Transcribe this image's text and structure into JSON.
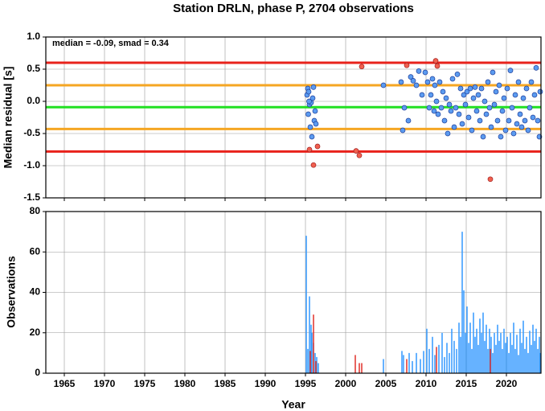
{
  "chart_data": [
    {
      "type": "scatter",
      "title": "Station DRLN, phase P, 2704 observations",
      "ylabel": "Median residual [s]",
      "annotation": "median = -0.09, smad = 0.34",
      "xlim": [
        1962.7,
        2024.3
      ],
      "ylim": [
        -1.5,
        1.0
      ],
      "xticks": [
        1965,
        1970,
        1975,
        1980,
        1985,
        1990,
        1995,
        2000,
        2005,
        2010,
        2015,
        2020
      ],
      "yticks": [
        {
          "value": -1.5,
          "label": "-1.5"
        },
        {
          "value": -1.0,
          "label": "-1.0"
        },
        {
          "value": -0.5,
          "label": "-0.5"
        },
        {
          "value": 0,
          "label": "0.0"
        },
        {
          "value": 0.5,
          "label": "0.5"
        },
        {
          "value": 1.0,
          "label": "1.0"
        }
      ],
      "grid": true,
      "reference_lines": [
        {
          "value": 0.6,
          "color": "#e8221b"
        },
        {
          "value": 0.25,
          "color": "#f5a623"
        },
        {
          "value": -0.09,
          "color": "#22e022"
        },
        {
          "value": -0.43,
          "color": "#f5a623"
        },
        {
          "value": -0.78,
          "color": "#e8221b"
        }
      ],
      "series": [
        {
          "color": "#5b9bf0",
          "x": [
            1995.2,
            1995.3,
            1995.4,
            1995.5,
            1995.6,
            1995.7,
            1995.8,
            1995.9,
            1996.0,
            1996.1,
            1996.2,
            1996.3,
            1995.35,
            1995.45,
            2004.7,
            2006.9,
            2007.1,
            2007.3,
            2007.8,
            2008.1,
            2008.4,
            2008.8,
            2009.1,
            2009.5,
            2009.9,
            2010.2,
            2010.4,
            2010.6,
            2010.8,
            2011.0,
            2011.1,
            2011.3,
            2011.5,
            2011.7,
            2011.9,
            2012.1,
            2012.3,
            2012.5,
            2012.7,
            2012.9,
            2013.1,
            2013.3,
            2013.5,
            2013.7,
            2013.9,
            2014.1,
            2014.3,
            2014.5,
            2014.7,
            2014.9,
            2015.1,
            2015.3,
            2015.5,
            2015.7,
            2015.9,
            2016.1,
            2016.3,
            2016.5,
            2016.7,
            2016.9,
            2017.1,
            2017.3,
            2017.5,
            2017.7,
            2017.9,
            2018.1,
            2018.3,
            2018.5,
            2018.7,
            2018.9,
            2019.1,
            2019.3,
            2019.5,
            2019.7,
            2019.9,
            2020.1,
            2020.3,
            2020.5,
            2020.7,
            2020.9,
            2021.1,
            2021.3,
            2021.5,
            2021.7,
            2021.9,
            2022.1,
            2022.3,
            2022.5,
            2022.7,
            2022.9,
            2023.1,
            2023.3,
            2023.5,
            2023.7,
            2023.9,
            2024.1,
            2024.2
          ],
          "values": [
            0.1,
            0.2,
            0.15,
            -0.05,
            -0.4,
            -0.02,
            -0.55,
            0.05,
            0.22,
            -0.3,
            -0.15,
            -0.35,
            -0.2,
            0.0,
            0.25,
            0.3,
            -0.45,
            -0.1,
            -0.3,
            0.38,
            0.32,
            0.25,
            0.47,
            0.1,
            0.45,
            0.3,
            -0.1,
            0.1,
            0.35,
            -0.15,
            0.25,
            0.0,
            -0.2,
            0.3,
            -0.1,
            0.15,
            -0.3,
            0.05,
            -0.5,
            -0.05,
            -0.15,
            0.35,
            -0.4,
            -0.1,
            0.42,
            -0.2,
            0.2,
            -0.35,
            0.1,
            -0.05,
            0.15,
            -0.25,
            0.2,
            -0.45,
            0.05,
            0.22,
            -0.15,
            0.1,
            -0.3,
            0.2,
            -0.55,
            0.0,
            -0.2,
            0.3,
            -0.1,
            -0.4,
            0.45,
            -0.05,
            0.15,
            -0.3,
            0.25,
            -0.55,
            -0.15,
            0.05,
            -0.45,
            0.2,
            -0.3,
            0.48,
            -0.1,
            -0.5,
            0.1,
            -0.35,
            0.3,
            -0.2,
            -0.4,
            0.05,
            -0.3,
            0.2,
            -0.45,
            -0.1,
            0.3,
            -0.25,
            0.1,
            0.52,
            -0.3,
            -0.55,
            0.15
          ]
        },
        {
          "color": "#f0604f",
          "x": [
            1995.5,
            1996.0,
            1996.5,
            2001.3,
            2001.7,
            2002.0,
            2007.6,
            2011.2,
            2011.4,
            2018.0
          ],
          "values": [
            -0.75,
            -0.99,
            -0.7,
            -0.77,
            -0.84,
            0.54,
            0.56,
            0.63,
            0.55,
            -1.21
          ]
        }
      ]
    },
    {
      "type": "bar",
      "xlabel": "Year",
      "ylabel": "Observations",
      "xlim": [
        1962.7,
        2024.3
      ],
      "ylim": [
        0,
        80
      ],
      "xticks": [
        1965,
        1970,
        1975,
        1980,
        1985,
        1990,
        1995,
        2000,
        2005,
        2010,
        2015,
        2020
      ],
      "yticks": [
        0,
        20,
        40,
        60,
        80
      ],
      "grid": true,
      "series": [
        {
          "color": "#3399ff",
          "x": [
            1995.1,
            1995.3,
            1995.5,
            1995.7,
            1995.8,
            1996.0,
            1996.2,
            1996.4,
            1996.6,
            2004.7,
            2007.0,
            2007.2,
            2007.9,
            2008.3,
            2008.8,
            2009.3,
            2009.7,
            2010.1,
            2010.4,
            2010.8,
            2011.1,
            2011.6,
            2012.0,
            2012.3,
            2012.6,
            2012.9,
            2013.2,
            2013.5,
            2013.8,
            2014.1,
            2014.3,
            2014.5,
            2014.7,
            2014.9,
            2015.1,
            2015.3,
            2015.5,
            2015.7,
            2015.9,
            2016.1,
            2016.3,
            2016.5,
            2016.7,
            2016.9,
            2017.1,
            2017.3,
            2017.5,
            2017.7,
            2017.9,
            2018.1,
            2018.3,
            2018.5,
            2018.7,
            2018.9,
            2019.1,
            2019.3,
            2019.5,
            2019.7,
            2019.9,
            2020.1,
            2020.3,
            2020.5,
            2020.7,
            2020.9,
            2021.1,
            2021.3,
            2021.5,
            2021.7,
            2021.9,
            2022.1,
            2022.3,
            2022.5,
            2022.7,
            2022.9,
            2023.1,
            2023.3,
            2023.5,
            2023.7,
            2023.9,
            2024.1,
            2024.2
          ],
          "values": [
            68,
            12,
            38,
            24,
            20,
            15,
            10,
            8,
            5,
            7,
            11,
            9,
            10,
            6,
            10,
            7,
            11,
            22,
            12,
            18,
            9,
            14,
            20,
            8,
            15,
            10,
            22,
            16,
            12,
            25,
            18,
            70,
            41,
            20,
            33,
            15,
            25,
            12,
            30,
            18,
            22,
            14,
            27,
            20,
            30,
            16,
            24,
            12,
            22,
            18,
            10,
            20,
            14,
            24,
            16,
            20,
            12,
            22,
            15,
            18,
            10,
            20,
            14,
            25,
            12,
            19,
            9,
            22,
            15,
            26,
            12,
            18,
            10,
            21,
            14,
            24,
            16,
            22,
            12,
            18,
            10
          ]
        },
        {
          "color": "#e0302a",
          "x": [
            1995.6,
            1996.0,
            1996.3,
            2001.2,
            2001.7,
            2002.0,
            2007.6,
            2011.3,
            2018.0
          ],
          "values": [
            11,
            29,
            6,
            9,
            5,
            5,
            7,
            13,
            12
          ]
        }
      ]
    }
  ]
}
